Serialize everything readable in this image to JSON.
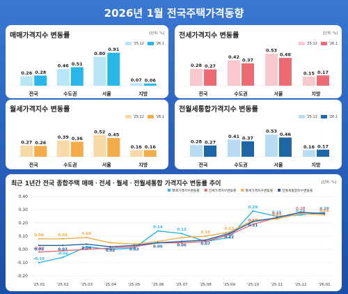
{
  "title": "2026년 1월 전국주택가격동향",
  "title_parts": {
    "year": "2026년 1월",
    "rest": "전국주택가격동향"
  },
  "unit_label": "[단위: %]",
  "bottom_unit_label": "[단위: %]",
  "legend_labels": {
    "prev": "'25.12",
    "cur": "'26.1"
  },
  "colors": {
    "sale": [
      "#b9e6f6",
      "#29b6e8"
    ],
    "jeonse": [
      "#f8c8cc",
      "#ef6b74"
    ],
    "wolse": [
      "#f8d9a8",
      "#f3ad48"
    ],
    "total": [
      "#b7dcf3",
      "#1e67a5"
    ]
  },
  "chart_data": [
    {
      "type": "bar",
      "title": "매매가격지수 변동률",
      "categories": [
        "전국",
        "수도권",
        "서울",
        "지방"
      ],
      "series": [
        {
          "name": "'25.12",
          "values": [
            0.26,
            0.46,
            0.8,
            0.07
          ]
        },
        {
          "name": "'26.1",
          "values": [
            0.28,
            0.51,
            0.91,
            0.06
          ]
        }
      ],
      "value_labels": [
        [
          "0.26",
          "0.46",
          "0.80",
          "0.07"
        ],
        [
          "0.28",
          "0.51",
          "0.91",
          "0.06"
        ]
      ],
      "ylim": [
        0,
        1.0
      ],
      "legend_position": "top-right"
    },
    {
      "type": "bar",
      "title": "전세가격지수 변동률",
      "categories": [
        "전국",
        "수도권",
        "서울",
        "지방"
      ],
      "series": [
        {
          "name": "'25.12",
          "values": [
            0.28,
            0.42,
            0.53,
            0.15
          ]
        },
        {
          "name": "'26.1",
          "values": [
            0.27,
            0.37,
            0.46,
            0.17
          ]
        }
      ],
      "value_labels": [
        [
          "0.28",
          "0.42",
          "0.53",
          "0.15"
        ],
        [
          "0.27",
          "0.37",
          "0.46",
          "0.17"
        ]
      ],
      "ylim": [
        0,
        0.6
      ],
      "legend_position": "top-right"
    },
    {
      "type": "bar",
      "title": "월세가격지수 변동률",
      "categories": [
        "전국",
        "수도권",
        "서울",
        "지방"
      ],
      "series": [
        {
          "name": "'25.12",
          "values": [
            0.27,
            0.39,
            0.52,
            0.16
          ]
        },
        {
          "name": "'26.1",
          "values": [
            0.26,
            0.36,
            0.45,
            0.16
          ]
        }
      ],
      "value_labels": [
        [
          "0.27",
          "0.39",
          "0.52",
          "0.16"
        ],
        [
          "0.26",
          "0.36",
          "0.45",
          "0.16"
        ]
      ],
      "ylim": [
        0,
        0.6
      ],
      "legend_position": "top-right"
    },
    {
      "type": "bar",
      "title": "전월세통합가격지수 변동률",
      "categories": [
        "전국",
        "수도권",
        "서울",
        "지방"
      ],
      "series": [
        {
          "name": "'25.12",
          "values": [
            0.28,
            0.41,
            0.53,
            0.16
          ]
        },
        {
          "name": "'26.1",
          "values": [
            0.27,
            0.37,
            0.46,
            0.17
          ]
        }
      ],
      "value_labels": [
        [
          "0.28",
          "0.41",
          "0.53",
          "0.16"
        ],
        [
          "0.27",
          "0.37",
          "0.46",
          "0.17"
        ]
      ],
      "ylim": [
        0,
        0.6
      ],
      "legend_position": "top-right"
    },
    {
      "type": "line",
      "title": "최근 1년간 전국 종합주택 매매ㆍ전세ㆍ월세ㆍ전월세통합 가격지수 변동률 추이",
      "x": [
        "'25.01",
        "'25.02",
        "'25.03",
        "'25.04",
        "'25.05",
        "'25.06",
        "'25.07",
        "'25.08",
        "'25.09",
        "'25.10",
        "'25.11",
        "'25.12",
        "'26.01"
      ],
      "y_ticks": [
        "0.40",
        "0.30",
        "0.20",
        "0.10",
        "0.00",
        "-0.10",
        "-0.20"
      ],
      "ylim": [
        -0.2,
        0.4
      ],
      "grid": true,
      "legend_position": "top-right",
      "series": [
        {
          "name": "매매가격지수변동률",
          "color": "#29b6e8",
          "values": [
            -0.1,
            -0.06,
            0.02,
            0.0,
            0.01,
            0.14,
            0.12,
            0.06,
            0.09,
            0.29,
            0.25,
            0.26,
            0.28
          ],
          "labels": [
            "-0.10",
            "-0.06",
            "",
            "",
            "",
            "0.14",
            "0.12",
            "",
            "0.09",
            "0.29",
            "0.25",
            "0.26",
            "0.28"
          ]
        },
        {
          "name": "전세가격지수변동률",
          "color": "#e86a7a",
          "values": [
            -0.02,
            -0.01,
            0.0,
            0.01,
            0.02,
            0.05,
            0.05,
            0.06,
            0.11,
            0.19,
            0.24,
            0.28,
            0.27
          ],
          "labels": [
            "-0.02",
            "",
            "",
            "",
            "",
            "",
            "",
            "",
            "",
            "0.19",
            "0.24",
            "0.28",
            "0.27"
          ]
        },
        {
          "name": "월세가격지수변동률",
          "color": "#f3ad48",
          "values": [
            0.08,
            0.08,
            0.09,
            0.05,
            0.04,
            0.06,
            0.09,
            0.1,
            0.13,
            0.22,
            0.23,
            0.27,
            0.26
          ],
          "labels": [
            "0.08",
            "0.08",
            "0.09",
            "",
            "",
            "",
            "",
            "0.10",
            "0.13",
            "",
            "0.23",
            "",
            "0.26"
          ]
        },
        {
          "name": "전월세통합지수변동률",
          "color": "#1e5fa0",
          "values": [
            0.03,
            0.03,
            0.04,
            0.02,
            0.03,
            0.05,
            0.06,
            0.07,
            0.12,
            0.21,
            0.24,
            0.28,
            0.27
          ],
          "labels": [
            "0.03",
            "0.03",
            "0.04",
            "0.02",
            "0.03",
            "0.05",
            "0.06",
            "0.07",
            "0.12",
            "0.21",
            "",
            "",
            ""
          ]
        }
      ]
    }
  ]
}
